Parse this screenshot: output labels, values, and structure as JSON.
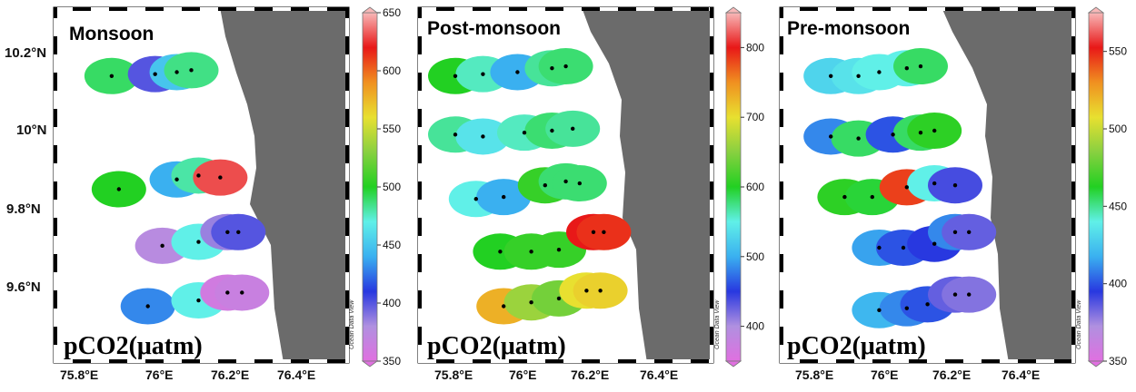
{
  "figure": {
    "lat_labels": [
      "10.2°N",
      "10°N",
      "9.8°N",
      "9.6°N"
    ],
    "lon_labels": [
      "75.8°E",
      "76°E",
      "76.2°E",
      "76.4°E"
    ],
    "colormap": [
      "#e070e0",
      "#b090e0",
      "#2838e0",
      "#3ab0f0",
      "#60f0e8",
      "#22d022",
      "#88d040",
      "#e8e030",
      "#f09020",
      "#e81818",
      "#f8b8b8"
    ],
    "land_color": "#6b6b6b",
    "watermark": "Ocean Data View"
  },
  "panels": [
    {
      "title": "Monsoon",
      "param_label": "pCO2(μatm)",
      "colorbar": {
        "min": 350,
        "max": 650,
        "ticks": [
          "650",
          "600",
          "550",
          "500",
          "450",
          "400",
          "350"
        ]
      },
      "stations": [
        {
          "lon": 75.88,
          "lat": 10.14,
          "pco2": 490
        },
        {
          "lon": 76.0,
          "lat": 10.145,
          "pco2": 400
        },
        {
          "lon": 76.06,
          "lat": 10.15,
          "pco2": 450
        },
        {
          "lon": 76.1,
          "lat": 10.155,
          "pco2": 485
        },
        {
          "lon": 75.9,
          "lat": 9.85,
          "pco2": 500
        },
        {
          "lon": 76.06,
          "lat": 9.875,
          "pco2": 440
        },
        {
          "lon": 76.12,
          "lat": 9.885,
          "pco2": 480
        },
        {
          "lon": 76.18,
          "lat": 9.88,
          "pco2": 630
        },
        {
          "lon": 76.02,
          "lat": 9.705,
          "pco2": 375
        },
        {
          "lon": 76.12,
          "lat": 9.715,
          "pco2": 470
        },
        {
          "lon": 76.2,
          "lat": 9.74,
          "pco2": 385
        },
        {
          "lon": 76.23,
          "lat": 9.74,
          "pco2": 400
        },
        {
          "lon": 75.98,
          "lat": 9.55,
          "pco2": 430
        },
        {
          "lon": 76.12,
          "lat": 9.565,
          "pco2": 470
        },
        {
          "lon": 76.2,
          "lat": 9.585,
          "pco2": 360
        },
        {
          "lon": 76.24,
          "lat": 9.585,
          "pco2": 365
        }
      ]
    },
    {
      "title": "Post-monsoon",
      "param_label": "pCO2(μatm)",
      "colorbar": {
        "min": 350,
        "max": 850,
        "ticks": [
          "800",
          "700",
          "600",
          "500",
          "400"
        ]
      },
      "stations": [
        {
          "lon": 75.8,
          "lat": 10.14,
          "pco2": 600
        },
        {
          "lon": 75.88,
          "lat": 10.145,
          "pco2": 560
        },
        {
          "lon": 75.98,
          "lat": 10.15,
          "pco2": 500
        },
        {
          "lon": 76.08,
          "lat": 10.16,
          "pco2": 570
        },
        {
          "lon": 76.12,
          "lat": 10.165,
          "pco2": 580
        },
        {
          "lon": 75.8,
          "lat": 9.99,
          "pco2": 570
        },
        {
          "lon": 75.88,
          "lat": 9.985,
          "pco2": 540
        },
        {
          "lon": 76.0,
          "lat": 9.995,
          "pco2": 560
        },
        {
          "lon": 76.08,
          "lat": 10.0,
          "pco2": 580
        },
        {
          "lon": 76.14,
          "lat": 10.005,
          "pco2": 570
        },
        {
          "lon": 75.86,
          "lat": 9.825,
          "pco2": 550
        },
        {
          "lon": 75.94,
          "lat": 9.83,
          "pco2": 500
        },
        {
          "lon": 76.06,
          "lat": 9.86,
          "pco2": 610
        },
        {
          "lon": 76.12,
          "lat": 9.87,
          "pco2": 580
        },
        {
          "lon": 76.16,
          "lat": 9.865,
          "pco2": 580
        },
        {
          "lon": 75.93,
          "lat": 9.69,
          "pco2": 600
        },
        {
          "lon": 76.02,
          "lat": 9.69,
          "pco2": 610
        },
        {
          "lon": 76.1,
          "lat": 9.695,
          "pco2": 610
        },
        {
          "lon": 76.2,
          "lat": 9.74,
          "pco2": 800
        },
        {
          "lon": 76.23,
          "lat": 9.74,
          "pco2": 790
        },
        {
          "lon": 75.94,
          "lat": 9.55,
          "pco2": 730
        },
        {
          "lon": 76.02,
          "lat": 9.56,
          "pco2": 660
        },
        {
          "lon": 76.1,
          "lat": 9.57,
          "pco2": 640
        },
        {
          "lon": 76.18,
          "lat": 9.59,
          "pco2": 700
        },
        {
          "lon": 76.22,
          "lat": 9.59,
          "pco2": 710
        }
      ]
    },
    {
      "title": "Pre-monsoon",
      "param_label": "pCO2(μatm)",
      "colorbar": {
        "min": 350,
        "max": 575,
        "ticks": [
          "550",
          "500",
          "450",
          "400",
          "350"
        ]
      },
      "stations": [
        {
          "lon": 75.84,
          "lat": 10.14,
          "pco2": 430
        },
        {
          "lon": 75.92,
          "lat": 10.14,
          "pco2": 435
        },
        {
          "lon": 75.98,
          "lat": 10.15,
          "pco2": 440
        },
        {
          "lon": 76.06,
          "lat": 10.16,
          "pco2": 440
        },
        {
          "lon": 76.1,
          "lat": 10.165,
          "pco2": 455
        },
        {
          "lon": 75.84,
          "lat": 9.985,
          "pco2": 410
        },
        {
          "lon": 75.92,
          "lat": 9.98,
          "pco2": 455
        },
        {
          "lon": 76.02,
          "lat": 9.99,
          "pco2": 400
        },
        {
          "lon": 76.1,
          "lat": 9.995,
          "pco2": 455
        },
        {
          "lon": 76.14,
          "lat": 10.0,
          "pco2": 465
        },
        {
          "lon": 75.88,
          "lat": 9.83,
          "pco2": 465
        },
        {
          "lon": 75.96,
          "lat": 9.83,
          "pco2": 460
        },
        {
          "lon": 76.06,
          "lat": 9.855,
          "pco2": 545
        },
        {
          "lon": 76.14,
          "lat": 9.865,
          "pco2": 440
        },
        {
          "lon": 76.2,
          "lat": 9.86,
          "pco2": 390
        },
        {
          "lon": 75.98,
          "lat": 9.7,
          "pco2": 415
        },
        {
          "lon": 76.05,
          "lat": 9.7,
          "pco2": 400
        },
        {
          "lon": 76.14,
          "lat": 9.71,
          "pco2": 395
        },
        {
          "lon": 76.2,
          "lat": 9.74,
          "pco2": 410
        },
        {
          "lon": 76.24,
          "lat": 9.74,
          "pco2": 385
        },
        {
          "lon": 75.98,
          "lat": 9.54,
          "pco2": 420
        },
        {
          "lon": 76.06,
          "lat": 9.545,
          "pco2": 410
        },
        {
          "lon": 76.12,
          "lat": 9.555,
          "pco2": 400
        },
        {
          "lon": 76.2,
          "lat": 9.58,
          "pco2": 385
        },
        {
          "lon": 76.24,
          "lat": 9.58,
          "pco2": 380
        }
      ]
    }
  ]
}
